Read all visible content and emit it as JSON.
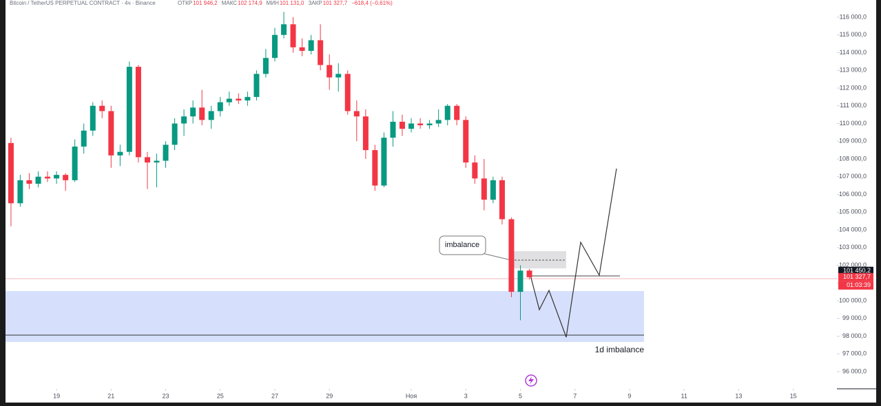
{
  "chart_data": {
    "type": "candlestick",
    "title": "Bitcoin / TetherUS PERPETUAL CONTRACT · 4ч · Binance",
    "ohlc_header": [
      {
        "label": "ОТКР",
        "value": "101 946,2"
      },
      {
        "label": "МАКС",
        "value": "102 174,9"
      },
      {
        "label": "МИН",
        "value": "101 131,0"
      },
      {
        "label": "ЗАКР",
        "value": "101 327,7"
      }
    ],
    "change": "−618,4 (−0,61%)",
    "up_color": "#089981",
    "down_color": "#f23645",
    "x": [
      17.33,
      17.67,
      18.0,
      18.33,
      18.67,
      19.0,
      19.33,
      19.67,
      20.0,
      20.33,
      20.67,
      21.0,
      21.33,
      21.67,
      22.0,
      22.33,
      22.67,
      23.0,
      23.33,
      23.67,
      24.0,
      24.33,
      24.67,
      25.0,
      25.33,
      25.67,
      26.0,
      26.33,
      26.67,
      27.0,
      27.33,
      27.67,
      28.0,
      28.33,
      28.67,
      29.0,
      29.33,
      29.67,
      30.0,
      30.33,
      30.67,
      31.0,
      31.33,
      31.67,
      32.0,
      32.33,
      32.67,
      33.0,
      33.33,
      33.67,
      34.0,
      34.33,
      34.67,
      35.0,
      35.33,
      35.67,
      36.0,
      36.33
    ],
    "open": [
      108900,
      105500,
      106800,
      106600,
      107000,
      106900,
      107100,
      106800,
      108700,
      109600,
      111000,
      110700,
      108200,
      108400,
      113200,
      108100,
      107800,
      107900,
      108800,
      110000,
      110400,
      110900,
      110200,
      110700,
      111200,
      111400,
      111300,
      111500,
      112800,
      113700,
      115000,
      115600,
      114300,
      114100,
      114700,
      113300,
      112600,
      112800,
      110700,
      110400,
      108500,
      106500,
      109200,
      110100,
      109700,
      110000,
      109900,
      110000,
      110200,
      111000,
      110200,
      107800,
      106900,
      105700,
      106800,
      104600,
      100500,
      101700
    ],
    "high": [
      109200,
      107100,
      107200,
      107300,
      107300,
      107300,
      107200,
      109100,
      110000,
      111200,
      111300,
      111000,
      108800,
      113500,
      113300,
      108400,
      108300,
      109000,
      110300,
      110800,
      111300,
      111900,
      111000,
      111500,
      111800,
      111700,
      111800,
      113000,
      114200,
      115400,
      116300,
      116000,
      114800,
      115000,
      115600,
      113900,
      113400,
      113000,
      111300,
      110800,
      108800,
      109500,
      110700,
      110500,
      110300,
      110300,
      110200,
      110800,
      111100,
      111100,
      110400,
      108200,
      108000,
      107000,
      107000,
      104700,
      102000,
      101800
    ],
    "low": [
      104200,
      105300,
      106300,
      106400,
      106700,
      106600,
      106200,
      106700,
      108300,
      109300,
      110300,
      107500,
      107600,
      108200,
      107800,
      106300,
      106400,
      107500,
      108500,
      109300,
      110000,
      109900,
      109700,
      110400,
      111000,
      111100,
      111000,
      111300,
      112600,
      113500,
      114800,
      114000,
      113800,
      113900,
      113000,
      111900,
      111800,
      110500,
      109000,
      108000,
      106200,
      106400,
      108700,
      109300,
      109500,
      109700,
      109700,
      109800,
      109900,
      109900,
      107500,
      106600,
      105100,
      105500,
      104300,
      100200,
      98900,
      101200
    ],
    "close": [
      105500,
      106800,
      106600,
      107000,
      106900,
      107100,
      106800,
      108700,
      109600,
      111000,
      110700,
      108200,
      108400,
      113200,
      108100,
      107800,
      107900,
      108800,
      110000,
      110400,
      110900,
      110200,
      110700,
      111200,
      111400,
      111300,
      111500,
      112800,
      113700,
      115000,
      115600,
      114300,
      114100,
      114700,
      113300,
      112600,
      112800,
      110700,
      110400,
      108500,
      106500,
      109200,
      110100,
      109700,
      110000,
      109900,
      110000,
      110200,
      111000,
      110200,
      107800,
      106900,
      105700,
      106800,
      104600,
      100500,
      101700,
      101327.7
    ],
    "xlim": [
      17.13,
      47.6
    ],
    "ylim": [
      95030,
      116970
    ],
    "xticks": [
      19,
      21,
      23,
      25,
      27,
      29,
      {
        "value": 32,
        "label": "Ноя"
      },
      {
        "value": 34,
        "label": "3"
      },
      {
        "value": 36,
        "label": "5"
      },
      {
        "value": 38,
        "label": "7"
      },
      {
        "value": 40,
        "label": "9"
      },
      {
        "value": 42,
        "label": "11"
      },
      {
        "value": 44,
        "label": "13"
      },
      {
        "value": 46,
        "label": "15"
      }
    ],
    "yticks": [
      {
        "value": 96000,
        "label": "96 000,0"
      },
      {
        "value": 97000,
        "label": "97 000,0"
      },
      {
        "value": 98000,
        "label": "98 000,0"
      },
      {
        "value": 99000,
        "label": "99 000,0"
      },
      {
        "value": 100000,
        "label": "100 000,0"
      },
      {
        "value": 101000,
        "label": "101 000,0"
      },
      {
        "value": 102000,
        "label": "102 000,0"
      },
      {
        "value": 103000,
        "label": "103 000,0"
      },
      {
        "value": 104000,
        "label": "104 000,0"
      },
      {
        "value": 105000,
        "label": "105 000,0"
      },
      {
        "value": 106000,
        "label": "106 000,0"
      },
      {
        "value": 107000,
        "label": "107 000,0"
      },
      {
        "value": 108000,
        "label": "108 000,0"
      },
      {
        "value": 109000,
        "label": "109 000,0"
      },
      {
        "value": 110000,
        "label": "110 000,0"
      },
      {
        "value": 111000,
        "label": "111 000,0"
      },
      {
        "value": 112000,
        "label": "112 000,0"
      },
      {
        "value": 113000,
        "label": "113 000,0"
      },
      {
        "value": 114000,
        "label": "114 000,0"
      },
      {
        "value": 115000,
        "label": "115 000,0"
      },
      {
        "value": 116000,
        "label": "116 000,0"
      }
    ],
    "markers": [
      {
        "value": 101450.2,
        "label": "101 450,2",
        "color": "#131722"
      },
      {
        "value": 101327.7,
        "label": "101 327,7",
        "color": "#f23645"
      }
    ],
    "countdown": "01:03:39",
    "annotations": {
      "callout": "imbalance",
      "zone": "1d imbalance"
    }
  }
}
